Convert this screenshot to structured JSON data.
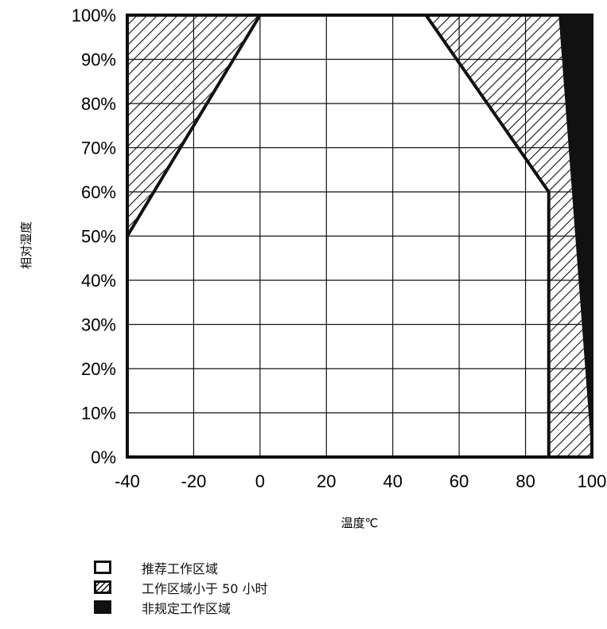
{
  "chart_data": {
    "type": "area",
    "xlabel": "温度℃",
    "ylabel": "相对湿度",
    "xlim": [
      -40,
      100
    ],
    "ylim": [
      0,
      100
    ],
    "x_ticks": [
      "-40",
      "-20",
      "0",
      "20",
      "40",
      "60",
      "80",
      "100"
    ],
    "y_ticks": [
      "0%",
      "10%",
      "20%",
      "30%",
      "40%",
      "50%",
      "60%",
      "70%",
      "80%",
      "90%",
      "100%"
    ],
    "grid": true,
    "regions": [
      {
        "key": "recommended",
        "fill": "white",
        "points": [
          [
            -40,
            0
          ],
          [
            -40,
            50
          ],
          [
            0,
            100
          ],
          [
            50,
            100
          ],
          [
            87,
            60
          ],
          [
            87,
            0
          ]
        ]
      },
      {
        "key": "limited_left",
        "fill": "hatch",
        "points": [
          [
            -40,
            50
          ],
          [
            -40,
            100
          ],
          [
            0,
            100
          ]
        ]
      },
      {
        "key": "limited_right",
        "fill": "hatch",
        "points": [
          [
            50,
            100
          ],
          [
            90,
            100
          ],
          [
            100,
            0
          ],
          [
            87,
            0
          ],
          [
            87,
            60
          ]
        ]
      },
      {
        "key": "not_specified",
        "fill": "black",
        "points": [
          [
            90,
            100
          ],
          [
            100,
            100
          ],
          [
            100,
            0
          ]
        ]
      }
    ]
  },
  "legend": {
    "items": [
      {
        "label": "推荐工作区域",
        "swatch": "white"
      },
      {
        "label": "工作区域小于 50 小时",
        "swatch": "hatch"
      },
      {
        "label": "非规定工作区域",
        "swatch": "black"
      }
    ]
  },
  "colors": {
    "ink": "#111111",
    "background": "#ffffff"
  }
}
